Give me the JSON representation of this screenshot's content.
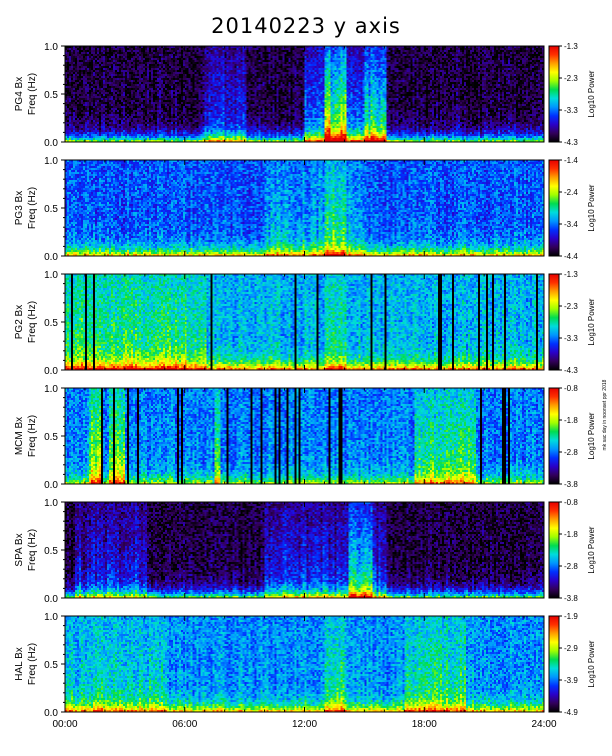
{
  "title": "20140223 y axis",
  "side_note": "mk sac day in noonset ppr 2018",
  "colors": {
    "colormap": [
      "#000000",
      "#32005a",
      "#2a00c8",
      "#0030ff",
      "#0096ff",
      "#00dcdc",
      "#00dc50",
      "#a0ff00",
      "#ffff00",
      "#ffa000",
      "#ff3000",
      "#e60000"
    ],
    "axes": "#000000",
    "background": "#ffffff"
  },
  "chart_data": [
    {
      "type": "heatmap",
      "station": "PG4",
      "ylabel_top": "PG4 Bx",
      "ylabel": "Freq (Hz)",
      "ylim": [
        0,
        1.0
      ],
      "yticks": [
        "0.0",
        "0.5",
        "1.0"
      ],
      "xlim": [
        0,
        24
      ],
      "colorbar_label": "Log10 Power",
      "colorbar_ticks": [
        "-1.3",
        "-2.3",
        "-3.3",
        "-4.3"
      ],
      "crange": [
        -4.3,
        -1.3
      ]
    },
    {
      "type": "heatmap",
      "station": "PG3",
      "ylabel_top": "PG3 Bx",
      "ylabel": "Freq (Hz)",
      "ylim": [
        0,
        1.0
      ],
      "yticks": [
        "0.0",
        "0.5",
        "1.0"
      ],
      "xlim": [
        0,
        24
      ],
      "colorbar_label": "Log10 Power",
      "colorbar_ticks": [
        "-1.4",
        "-2.4",
        "-3.4",
        "-4.4"
      ],
      "crange": [
        -4.4,
        -1.4
      ]
    },
    {
      "type": "heatmap",
      "station": "PG2",
      "ylabel_top": "PG2 Bx",
      "ylabel": "Freq (Hz)",
      "ylim": [
        0,
        1.0
      ],
      "yticks": [
        "0.0",
        "0.5",
        "1.0"
      ],
      "xlim": [
        0,
        24
      ],
      "colorbar_label": "Log10 Power",
      "colorbar_ticks": [
        "-1.3",
        "-2.3",
        "-3.3",
        "-4.3"
      ],
      "crange": [
        -4.3,
        -1.3
      ]
    },
    {
      "type": "heatmap",
      "station": "MCM",
      "ylabel_top": "MCM Bx",
      "ylabel": "Freq (Hz)",
      "ylim": [
        0,
        1.0
      ],
      "yticks": [
        "0.0",
        "0.5",
        "1.0"
      ],
      "xlim": [
        0,
        24
      ],
      "colorbar_label": "Log10 Power",
      "colorbar_ticks": [
        "-0.8",
        "-1.8",
        "-2.8",
        "-3.8"
      ],
      "crange": [
        -3.8,
        -0.8
      ]
    },
    {
      "type": "heatmap",
      "station": "SPA",
      "ylabel_top": "SPA Bx",
      "ylabel": "Freq (Hz)",
      "ylim": [
        0,
        1.0
      ],
      "yticks": [
        "0.0",
        "0.5",
        "1.0"
      ],
      "xlim": [
        0,
        24
      ],
      "colorbar_label": "Log10 Power",
      "colorbar_ticks": [
        "-0.8",
        "-1.8",
        "-2.8",
        "-3.8"
      ],
      "crange": [
        -3.8,
        -0.8
      ]
    },
    {
      "type": "heatmap",
      "station": "HAL",
      "ylabel_top": "HAL Bx",
      "ylabel": "Freq (Hz)",
      "ylim": [
        0,
        1.0
      ],
      "yticks": [
        "0.0",
        "0.5",
        "1.0"
      ],
      "xlim": [
        0,
        24
      ],
      "colorbar_label": "Log10 Power",
      "colorbar_ticks": [
        "-1.9",
        "-2.9",
        "-3.9",
        "-4.9"
      ],
      "crange": [
        -4.9,
        -1.9
      ]
    }
  ],
  "x_axis": {
    "range_hours": [
      0,
      24
    ],
    "ticks": [
      0,
      6,
      12,
      18,
      24
    ],
    "tick_labels": [
      "00:00",
      "06:00",
      "12:00",
      "18:00",
      "24:00"
    ]
  }
}
